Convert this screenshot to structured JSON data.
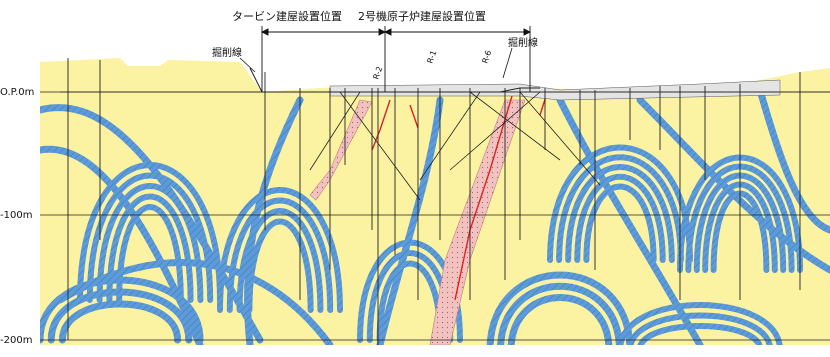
{
  "header": {
    "turbine_label": "タービン建屋設置位置",
    "reactor_label": "2号機原子炉建屋設置位置"
  },
  "excavation_labels": [
    "掘削線",
    "掘削線"
  ],
  "elevation_labels": [
    "O.P.0m",
    "-100m",
    "-200m"
  ],
  "borehole_labels": [
    "R-2",
    "R-1",
    "R-6"
  ],
  "colors": {
    "background": "#fbf3a2",
    "strata": "#5c9ad8",
    "shear_zone": "#f2c2c0",
    "fault": "#e02020",
    "surface_fill": "#e4e4e4",
    "lines": "#222222"
  }
}
